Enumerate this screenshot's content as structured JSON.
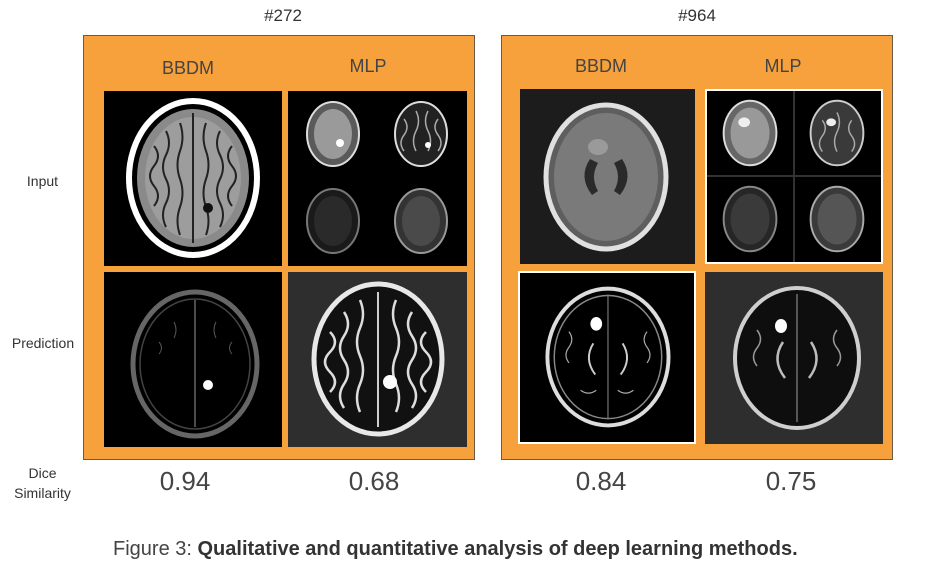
{
  "figure": {
    "row_labels": {
      "input": "Input",
      "prediction": "Prediction",
      "dice_line1": "Dice",
      "dice_line2": "Similarity"
    },
    "cases": [
      {
        "id": "#272",
        "columns": [
          "BBDM",
          "MLP"
        ],
        "dice": [
          "0.94",
          "0.68"
        ]
      },
      {
        "id": "#964",
        "columns": [
          "BBDM",
          "MLP"
        ],
        "dice": [
          "0.84",
          "0.75"
        ]
      }
    ],
    "caption_prefix": "Figure 3: ",
    "caption_bold": "Qualitative and quantitative analysis of deep learning methods.",
    "colors": {
      "panel": "#f7a13c",
      "scan_background": "#000000",
      "frame": "#ffffff"
    }
  }
}
